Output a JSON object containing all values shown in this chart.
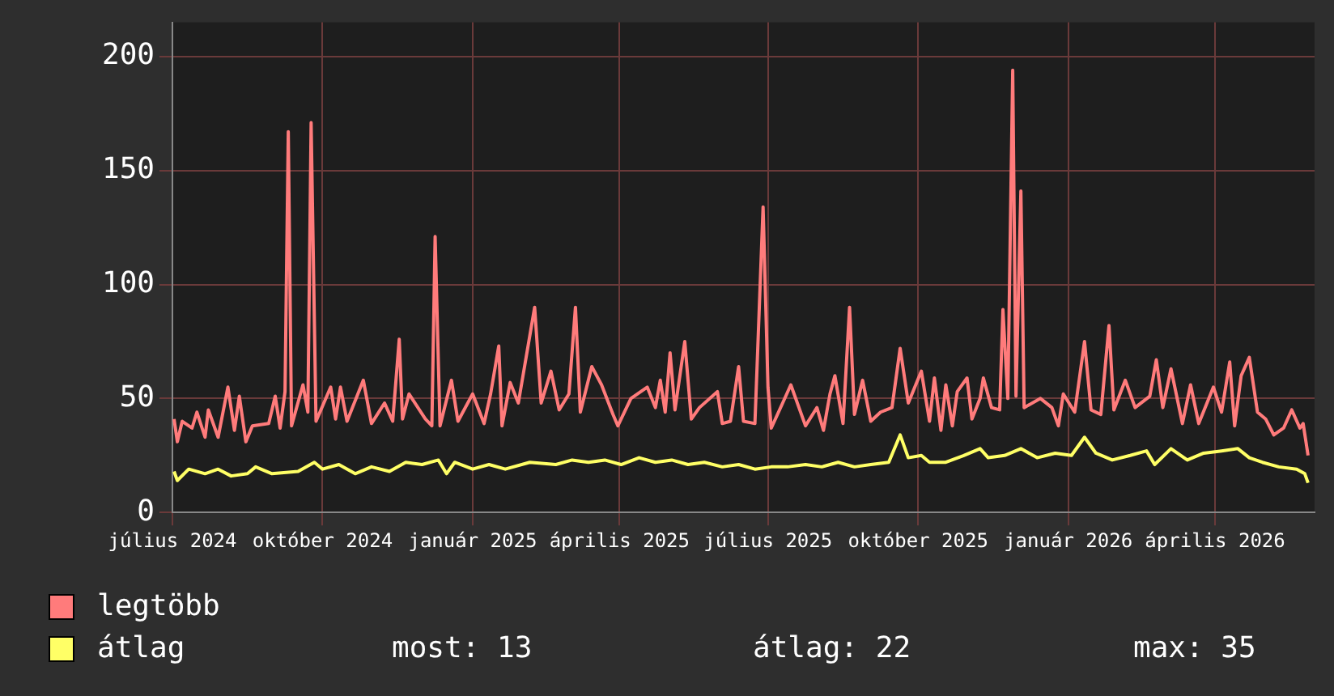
{
  "chart_data": {
    "type": "line",
    "xlim": [
      "2024-07-01",
      "2026-06-01"
    ],
    "xticks": [
      {
        "value": "2024-07-01",
        "label": "július 2024"
      },
      {
        "value": "2024-10-01",
        "label": "október 2024"
      },
      {
        "value": "2025-01-01",
        "label": "január 2025"
      },
      {
        "value": "2025-04-01",
        "label": "április 2025"
      },
      {
        "value": "2025-07-01",
        "label": "július 2025"
      },
      {
        "value": "2025-10-01",
        "label": "október 2025"
      },
      {
        "value": "2026-01-01",
        "label": "január 2026"
      },
      {
        "value": "2026-04-01",
        "label": "április 2026"
      }
    ],
    "ylim": [
      0,
      215
    ],
    "yticks": [
      0,
      50,
      100,
      150,
      200
    ],
    "grid": true,
    "legend": "bottom left",
    "marker": "none",
    "line_style": "solid",
    "annotations": [
      "most: 13",
      "átlag: 22",
      "max: 35"
    ],
    "series": [
      {
        "name": "legtöbb",
        "color": "#ff7b7b",
        "x": [
          "2024-07-02",
          "2024-07-04",
          "2024-07-07",
          "2024-07-13",
          "2024-07-16",
          "2024-07-21",
          "2024-07-23",
          "2024-07-29",
          "2024-08-04",
          "2024-08-08",
          "2024-08-11",
          "2024-08-15",
          "2024-08-19",
          "2024-08-29",
          "2024-09-02",
          "2024-09-05",
          "2024-09-08",
          "2024-09-10",
          "2024-09-12",
          "2024-09-19",
          "2024-09-22",
          "2024-09-24",
          "2024-09-27",
          "2024-10-06",
          "2024-10-09",
          "2024-10-12",
          "2024-10-16",
          "2024-10-26",
          "2024-10-31",
          "2024-11-08",
          "2024-11-13",
          "2024-11-17",
          "2024-11-19",
          "2024-11-23",
          "2024-12-03",
          "2024-12-07",
          "2024-12-09",
          "2024-12-12",
          "2024-12-19",
          "2024-12-23",
          "2025-01-01",
          "2025-01-08",
          "2025-01-12",
          "2025-01-17",
          "2025-01-19",
          "2025-01-24",
          "2025-01-29",
          "2025-02-08",
          "2025-02-12",
          "2025-02-18",
          "2025-02-23",
          "2025-03-01",
          "2025-03-05",
          "2025-03-08",
          "2025-03-15",
          "2025-03-21",
          "2025-03-28",
          "2025-03-31",
          "2025-04-08",
          "2025-04-18",
          "2025-04-23",
          "2025-04-26",
          "2025-04-29",
          "2025-05-02",
          "2025-05-05",
          "2025-05-11",
          "2025-05-15",
          "2025-05-20",
          "2025-05-31",
          "2025-06-03",
          "2025-06-08",
          "2025-06-13",
          "2025-06-16",
          "2025-06-23",
          "2025-06-28",
          "2025-07-01",
          "2025-07-03",
          "2025-07-10",
          "2025-07-15",
          "2025-07-24",
          "2025-07-31",
          "2025-08-04",
          "2025-08-08",
          "2025-08-11",
          "2025-08-16",
          "2025-08-20",
          "2025-08-23",
          "2025-08-28",
          "2025-09-02",
          "2025-09-08",
          "2025-09-15",
          "2025-09-20",
          "2025-09-25",
          "2025-10-03",
          "2025-10-08",
          "2025-10-11",
          "2025-10-15",
          "2025-10-18",
          "2025-10-22",
          "2025-10-25",
          "2025-10-31",
          "2025-11-03",
          "2025-11-08",
          "2025-11-10",
          "2025-11-15",
          "2025-11-20",
          "2025-11-22",
          "2025-11-25",
          "2025-11-28",
          "2025-11-30",
          "2025-12-03",
          "2025-12-05",
          "2025-12-15",
          "2025-12-22",
          "2025-12-26",
          "2025-12-29",
          "2026-01-05",
          "2026-01-11",
          "2026-01-15",
          "2026-01-21",
          "2026-01-26",
          "2026-01-29",
          "2026-02-05",
          "2026-02-11",
          "2026-02-20",
          "2026-02-24",
          "2026-02-28",
          "2026-03-05",
          "2026-03-12",
          "2026-03-17",
          "2026-03-22",
          "2026-03-31",
          "2026-04-05",
          "2026-04-10",
          "2026-04-13",
          "2026-04-17",
          "2026-04-22",
          "2026-04-27",
          "2026-05-02",
          "2026-05-07",
          "2026-05-13",
          "2026-05-18",
          "2026-05-23",
          "2026-05-25",
          "2026-05-28"
        ],
        "values": [
          41,
          31,
          40,
          37,
          44,
          33,
          45,
          33,
          55,
          36,
          51,
          31,
          38,
          39,
          51,
          37,
          53,
          167,
          38,
          56,
          44,
          171,
          40,
          55,
          41,
          55,
          40,
          58,
          39,
          48,
          40,
          76,
          41,
          52,
          41,
          38,
          121,
          38,
          58,
          40,
          52,
          39,
          52,
          73,
          38,
          57,
          48,
          90,
          48,
          62,
          45,
          52,
          90,
          44,
          64,
          56,
          43,
          38,
          50,
          55,
          46,
          58,
          44,
          70,
          45,
          75,
          41,
          46,
          53,
          39,
          40,
          64,
          40,
          39,
          134,
          55,
          37,
          48,
          56,
          38,
          46,
          36,
          52,
          60,
          39,
          90,
          43,
          58,
          40,
          44,
          46,
          72,
          48,
          62,
          40,
          59,
          36,
          56,
          38,
          53,
          59,
          41,
          50,
          59,
          46,
          45,
          89,
          50,
          194,
          51,
          141,
          46,
          50,
          46,
          38,
          52,
          44,
          75,
          45,
          43,
          82,
          45,
          58,
          46,
          51,
          67,
          46,
          63,
          39,
          56,
          39,
          55,
          44,
          66,
          38,
          60,
          68,
          44,
          41,
          34,
          37,
          45,
          37,
          39,
          25
        ]
      },
      {
        "name": "átlag",
        "color": "#ffff66",
        "x": [
          "2024-07-02",
          "2024-07-04",
          "2024-07-11",
          "2024-07-21",
          "2024-07-29",
          "2024-08-06",
          "2024-08-16",
          "2024-08-21",
          "2024-08-31",
          "2024-09-16",
          "2024-09-26",
          "2024-10-01",
          "2024-10-11",
          "2024-10-21",
          "2024-10-31",
          "2024-11-11",
          "2024-11-21",
          "2024-12-01",
          "2024-12-11",
          "2024-12-16",
          "2024-12-21",
          "2025-01-01",
          "2025-01-11",
          "2025-01-21",
          "2025-02-05",
          "2025-02-21",
          "2025-03-03",
          "2025-03-13",
          "2025-03-23",
          "2025-04-02",
          "2025-04-13",
          "2025-04-23",
          "2025-05-03",
          "2025-05-13",
          "2025-05-23",
          "2025-06-03",
          "2025-06-13",
          "2025-06-23",
          "2025-07-03",
          "2025-07-13",
          "2025-07-24",
          "2025-08-03",
          "2025-08-13",
          "2025-08-23",
          "2025-09-02",
          "2025-09-13",
          "2025-09-20",
          "2025-09-25",
          "2025-10-03",
          "2025-10-08",
          "2025-10-18",
          "2025-10-29",
          "2025-11-08",
          "2025-11-13",
          "2025-11-23",
          "2025-12-03",
          "2025-12-13",
          "2025-12-24",
          "2026-01-03",
          "2026-01-11",
          "2026-01-18",
          "2026-01-28",
          "2026-02-08",
          "2026-02-18",
          "2026-02-23",
          "2026-03-05",
          "2026-03-15",
          "2026-03-25",
          "2026-04-05",
          "2026-04-15",
          "2026-04-22",
          "2026-04-30",
          "2026-05-10",
          "2026-05-21",
          "2026-05-26",
          "2026-05-28"
        ],
        "values": [
          18,
          14,
          19,
          17,
          19,
          16,
          17,
          20,
          17,
          18,
          22,
          19,
          21,
          17,
          20,
          18,
          22,
          21,
          23,
          17,
          22,
          19,
          21,
          19,
          22,
          21,
          23,
          22,
          23,
          21,
          24,
          22,
          23,
          21,
          22,
          20,
          21,
          19,
          20,
          20,
          21,
          20,
          22,
          20,
          21,
          22,
          34,
          24,
          25,
          22,
          22,
          25,
          28,
          24,
          25,
          28,
          24,
          26,
          25,
          33,
          26,
          23,
          25,
          27,
          21,
          28,
          23,
          26,
          27,
          28,
          24,
          22,
          20,
          19,
          17,
          13
        ]
      }
    ]
  }
}
